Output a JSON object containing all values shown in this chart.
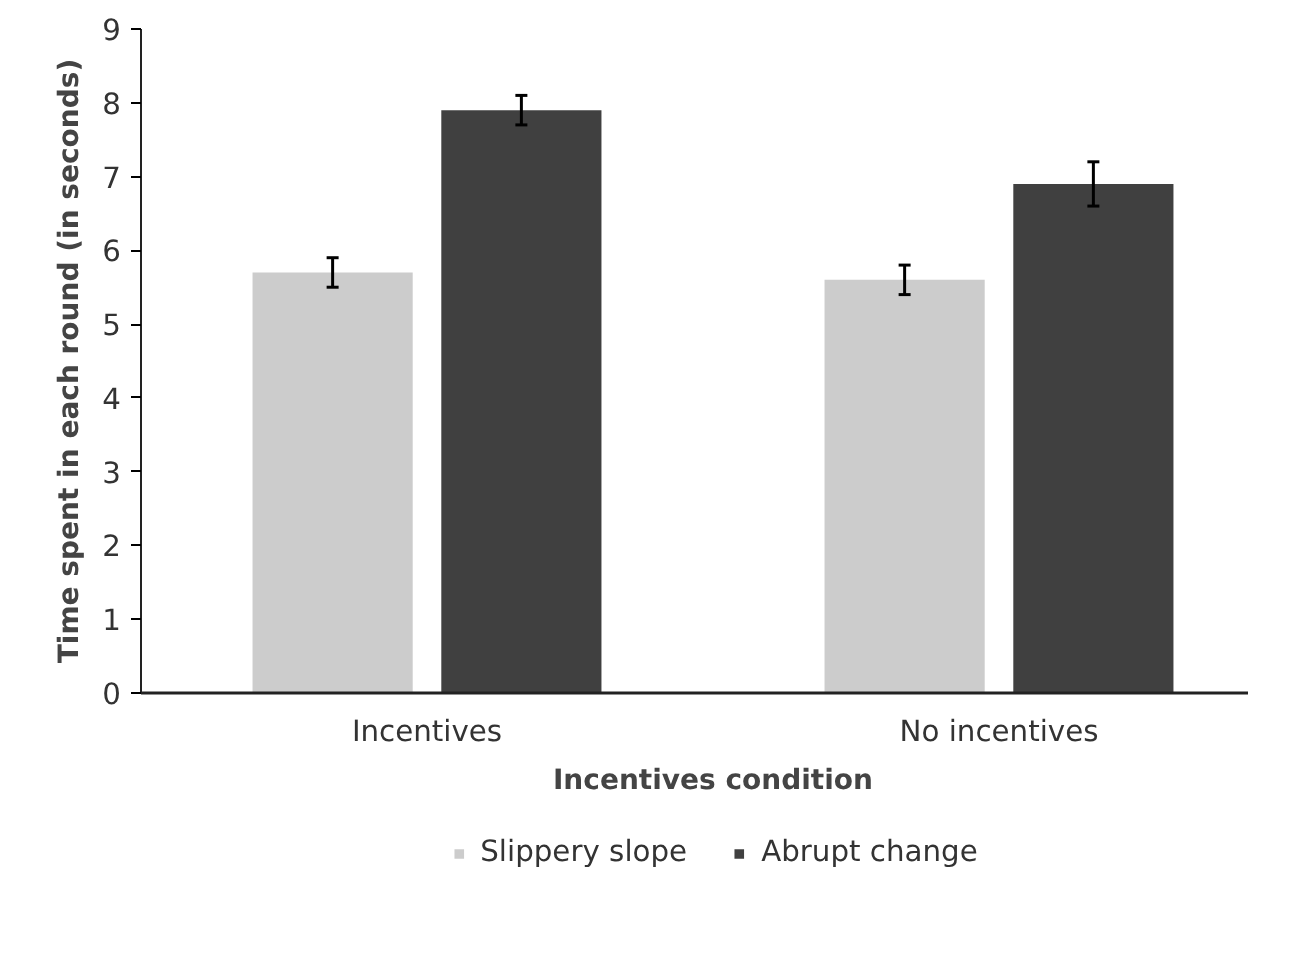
{
  "chart_data": {
    "type": "bar",
    "xlabel": "Incentives condition",
    "ylabel": "Time spent in each round (in seconds)",
    "categories": [
      "Incentives",
      "No incentives"
    ],
    "series": [
      {
        "name": "Slippery slope",
        "color": "#cccccc",
        "values": [
          5.7,
          5.6
        ],
        "errors": [
          0.2,
          0.2
        ]
      },
      {
        "name": "Abrupt change",
        "color": "#404040",
        "values": [
          7.9,
          6.9
        ],
        "errors": [
          0.2,
          0.3
        ]
      }
    ],
    "ylim": [
      0,
      9
    ],
    "yticks": [
      0,
      1,
      2,
      3,
      4,
      5,
      6,
      7,
      8,
      9
    ],
    "grid": false,
    "legend": "bottom"
  }
}
